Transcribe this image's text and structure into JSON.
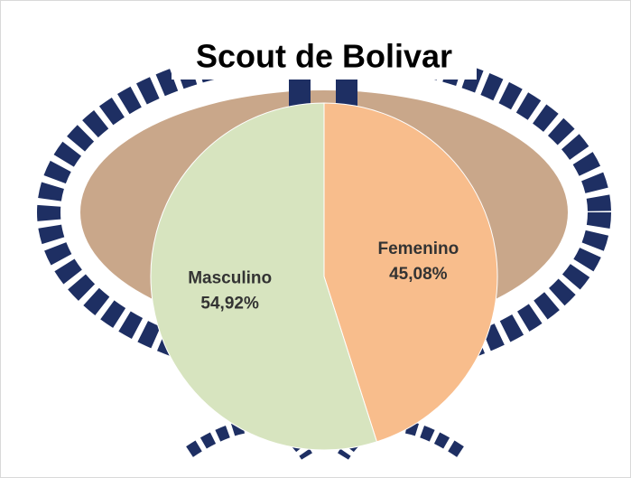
{
  "chart_data": {
    "type": "pie",
    "title": "Scout de Bolivar",
    "categories": [
      "Femenino",
      "Masculino"
    ],
    "values": [
      45.08,
      54.92
    ],
    "value_labels": [
      "45,08%",
      "54,92%"
    ],
    "colors": [
      "#f8bd8c",
      "#d7e4bf"
    ],
    "start_angle": 0,
    "direction": "clockwise"
  }
}
